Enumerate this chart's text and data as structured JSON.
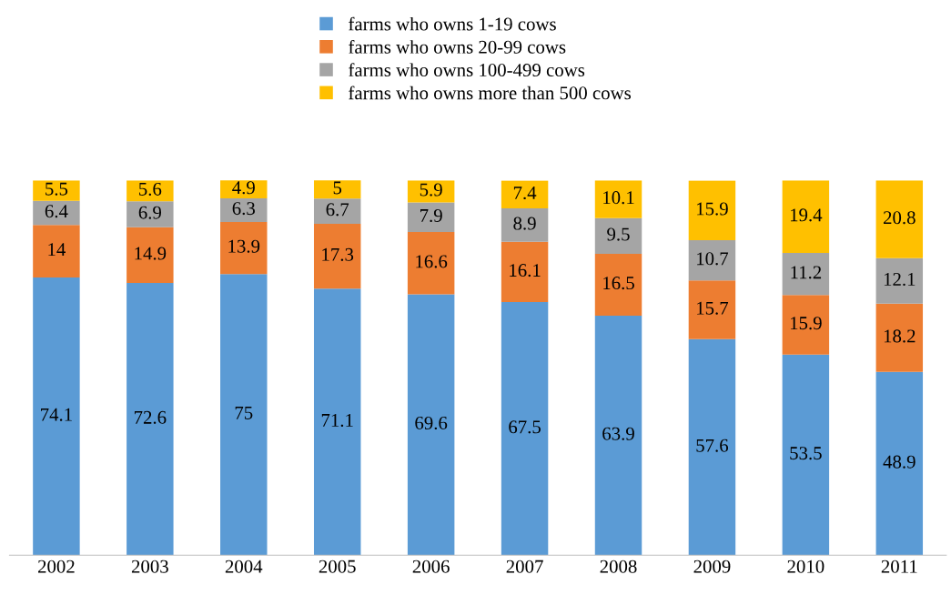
{
  "chart_data": {
    "type": "bar",
    "stacked": true,
    "categories": [
      "2002",
      "2003",
      "2004",
      "2005",
      "2006",
      "2007",
      "2008",
      "2009",
      "2010",
      "2011"
    ],
    "series": [
      {
        "name": "farms who owns 1-19 cows",
        "color": "#5b9bd5",
        "values": [
          74.1,
          72.6,
          75,
          71.1,
          69.6,
          67.5,
          63.9,
          57.6,
          53.5,
          48.9
        ]
      },
      {
        "name": "farms who owns 20-99 cows",
        "color": "#ed7d31",
        "values": [
          14,
          14.9,
          13.9,
          17.3,
          16.6,
          16.1,
          16.5,
          15.7,
          15.9,
          18.2
        ]
      },
      {
        "name": "farms who owns 100-499 cows",
        "color": "#a5a5a5",
        "values": [
          6.4,
          6.9,
          6.3,
          6.7,
          7.9,
          8.9,
          9.5,
          10.7,
          11.2,
          12.1
        ]
      },
      {
        "name": "farms who owns more than 500 cows",
        "color": "#ffc000",
        "values": [
          5.5,
          5.6,
          4.9,
          5,
          5.9,
          7.4,
          10.1,
          15.9,
          19.4,
          20.8
        ]
      }
    ],
    "ylim": [
      0,
      100
    ],
    "data_labels": true,
    "legend": "top",
    "grid": false,
    "tick_labels": "x"
  }
}
